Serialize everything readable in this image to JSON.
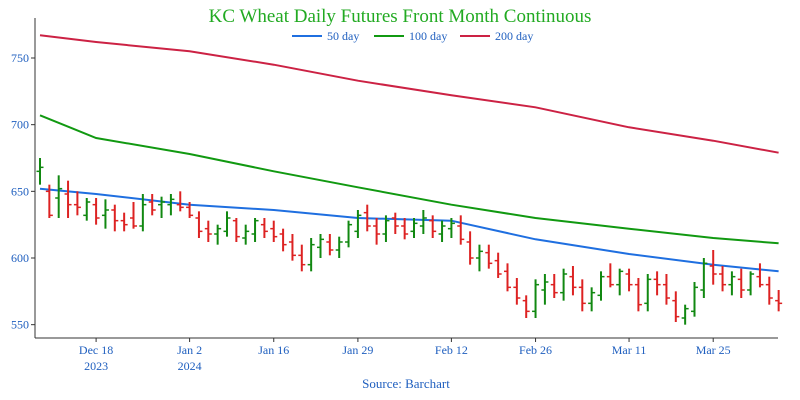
{
  "chart_data": {
    "type": "ohlc",
    "title": "KC Wheat Daily Futures Front Month Continuous",
    "source": "Source: Barchart",
    "ylim": [
      540,
      780
    ],
    "yticks": [
      550,
      600,
      650,
      700,
      750
    ],
    "xticks": [
      {
        "label": "Dec 18",
        "sub": "2023",
        "day": 6
      },
      {
        "label": "Jan 2",
        "sub": "2024",
        "day": 16
      },
      {
        "label": "Jan 16",
        "sub": "",
        "day": 25
      },
      {
        "label": "Jan 29",
        "sub": "",
        "day": 34
      },
      {
        "label": "Feb 12",
        "sub": "",
        "day": 44
      },
      {
        "label": "Feb 26",
        "sub": "",
        "day": 53
      },
      {
        "label": "Mar 11",
        "sub": "",
        "day": 63
      },
      {
        "label": "Mar 25",
        "sub": "",
        "day": 72
      }
    ],
    "colors": {
      "up": "#118811",
      "down": "#dd2222",
      "title": "#22aa22",
      "axis": "#1f5fbf"
    },
    "series": [
      {
        "name": "50 day",
        "color": "#1f6fe0",
        "points": [
          [
            0,
            652
          ],
          [
            6,
            648
          ],
          [
            16,
            640
          ],
          [
            25,
            636
          ],
          [
            34,
            630
          ],
          [
            44,
            628
          ],
          [
            53,
            614
          ],
          [
            63,
            603
          ],
          [
            72,
            595
          ],
          [
            79,
            590
          ]
        ]
      },
      {
        "name": "100 day",
        "color": "#119911",
        "points": [
          [
            0,
            707
          ],
          [
            6,
            690
          ],
          [
            16,
            678
          ],
          [
            25,
            665
          ],
          [
            34,
            653
          ],
          [
            44,
            640
          ],
          [
            53,
            630
          ],
          [
            63,
            622
          ],
          [
            72,
            615
          ],
          [
            79,
            611
          ]
        ]
      },
      {
        "name": "200 day",
        "color": "#cc2244",
        "points": [
          [
            0,
            767
          ],
          [
            6,
            762
          ],
          [
            16,
            755
          ],
          [
            25,
            745
          ],
          [
            34,
            733
          ],
          [
            44,
            722
          ],
          [
            53,
            713
          ],
          [
            63,
            698
          ],
          [
            72,
            688
          ],
          [
            79,
            679
          ]
        ]
      }
    ],
    "ohlc": [
      [
        665,
        675,
        655,
        668
      ],
      [
        650,
        655,
        630,
        632
      ],
      [
        645,
        662,
        630,
        652
      ],
      [
        648,
        658,
        630,
        640
      ],
      [
        640,
        650,
        632,
        638
      ],
      [
        632,
        645,
        628,
        642
      ],
      [
        640,
        645,
        625,
        630
      ],
      [
        632,
        644,
        622,
        636
      ],
      [
        636,
        640,
        620,
        628
      ],
      [
        628,
        634,
        620,
        625
      ],
      [
        630,
        642,
        622,
        624
      ],
      [
        624,
        648,
        620,
        640
      ],
      [
        642,
        648,
        632,
        636
      ],
      [
        640,
        646,
        630,
        642
      ],
      [
        640,
        648,
        632,
        644
      ],
      [
        640,
        650,
        635,
        638
      ],
      [
        638,
        642,
        630,
        632
      ],
      [
        630,
        635,
        615,
        620
      ],
      [
        622,
        628,
        612,
        618
      ],
      [
        618,
        625,
        610,
        622
      ],
      [
        620,
        635,
        616,
        630
      ],
      [
        628,
        630,
        612,
        616
      ],
      [
        615,
        625,
        610,
        620
      ],
      [
        618,
        630,
        612,
        628
      ],
      [
        625,
        630,
        615,
        620
      ],
      [
        622,
        628,
        612,
        616
      ],
      [
        618,
        622,
        605,
        610
      ],
      [
        612,
        618,
        598,
        602
      ],
      [
        602,
        610,
        590,
        595
      ],
      [
        595,
        615,
        590,
        610
      ],
      [
        608,
        618,
        600,
        614
      ],
      [
        612,
        618,
        602,
        606
      ],
      [
        606,
        616,
        600,
        612
      ],
      [
        612,
        628,
        608,
        625
      ],
      [
        620,
        636,
        615,
        632
      ],
      [
        634,
        640,
        620,
        624
      ],
      [
        624,
        630,
        610,
        618
      ],
      [
        618,
        632,
        612,
        628
      ],
      [
        630,
        634,
        618,
        624
      ],
      [
        624,
        630,
        614,
        618
      ],
      [
        620,
        630,
        615,
        626
      ],
      [
        624,
        636,
        618,
        630
      ],
      [
        628,
        632,
        615,
        620
      ],
      [
        618,
        628,
        612,
        624
      ],
      [
        622,
        630,
        615,
        626
      ],
      [
        624,
        632,
        610,
        614
      ],
      [
        612,
        620,
        595,
        600
      ],
      [
        600,
        610,
        590,
        605
      ],
      [
        604,
        610,
        592,
        596
      ],
      [
        598,
        604,
        585,
        588
      ],
      [
        590,
        596,
        575,
        578
      ],
      [
        578,
        585,
        565,
        570
      ],
      [
        568,
        572,
        555,
        560
      ],
      [
        560,
        584,
        555,
        580
      ],
      [
        576,
        588,
        565,
        582
      ],
      [
        580,
        588,
        570,
        574
      ],
      [
        574,
        592,
        568,
        588
      ],
      [
        586,
        594,
        572,
        578
      ],
      [
        578,
        584,
        560,
        566
      ],
      [
        566,
        578,
        560,
        574
      ],
      [
        572,
        590,
        568,
        586
      ],
      [
        586,
        596,
        578,
        580
      ],
      [
        580,
        592,
        572,
        590
      ],
      [
        588,
        592,
        575,
        580
      ],
      [
        580,
        585,
        560,
        565
      ],
      [
        566,
        588,
        560,
        584
      ],
      [
        584,
        590,
        572,
        580
      ],
      [
        580,
        588,
        565,
        570
      ],
      [
        568,
        575,
        552,
        556
      ],
      [
        555,
        565,
        550,
        562
      ],
      [
        560,
        582,
        556,
        578
      ],
      [
        576,
        600,
        570,
        596
      ],
      [
        594,
        606,
        580,
        588
      ],
      [
        588,
        594,
        575,
        580
      ],
      [
        580,
        590,
        572,
        586
      ],
      [
        584,
        592,
        570,
        576
      ],
      [
        576,
        590,
        572,
        588
      ],
      [
        586,
        596,
        578,
        580
      ],
      [
        580,
        586,
        565,
        570
      ],
      [
        568,
        576,
        560,
        566
      ]
    ]
  }
}
